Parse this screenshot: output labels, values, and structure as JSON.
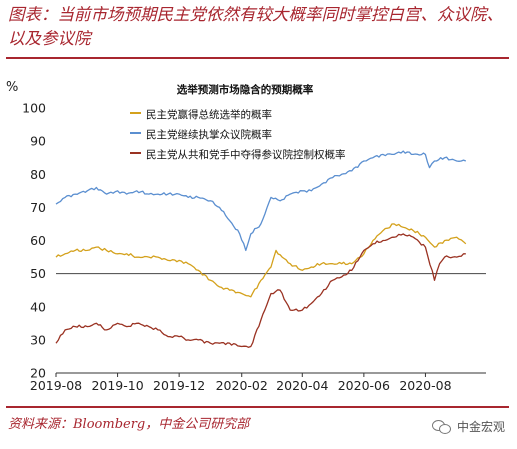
{
  "figure": {
    "title": "图表：当前市场预期民主党依然有较大概率同时掌控白宫、众议院、以及参议院",
    "source": "资料来源：Bloomberg，中金公司研究部",
    "watermark_text": "中金宏观",
    "watermark_icon": "wechat-icon",
    "accent_color": "#a8262f"
  },
  "chart_data": {
    "type": "line",
    "title": "选举预测市场隐含的预期概率",
    "y_unit": "%",
    "ylim": [
      20,
      100
    ],
    "yticks": [
      20,
      30,
      40,
      50,
      60,
      70,
      80,
      90,
      100
    ],
    "xlim": [
      "2019-08-01",
      "2020-09-30"
    ],
    "xticks": [
      "2019-08",
      "2019-10",
      "2019-12",
      "2020-02",
      "2020-04",
      "2020-06",
      "2020-08"
    ],
    "grid": false,
    "reference_line": 50,
    "legend_position": "top-center",
    "series": [
      {
        "name": "民主党赢得总统选举的概率",
        "color": "#d4a11c",
        "points": [
          [
            "2019-08-01",
            55
          ],
          [
            "2019-08-10",
            56
          ],
          [
            "2019-08-20",
            57
          ],
          [
            "2019-09-01",
            57
          ],
          [
            "2019-09-10",
            58
          ],
          [
            "2019-09-20",
            57
          ],
          [
            "2019-10-01",
            56
          ],
          [
            "2019-10-10",
            56
          ],
          [
            "2019-10-20",
            55
          ],
          [
            "2019-11-01",
            55
          ],
          [
            "2019-11-10",
            55
          ],
          [
            "2019-11-20",
            54
          ],
          [
            "2019-12-01",
            54
          ],
          [
            "2019-12-10",
            53
          ],
          [
            "2019-12-20",
            51
          ],
          [
            "2020-01-01",
            48
          ],
          [
            "2020-01-10",
            46
          ],
          [
            "2020-01-20",
            45
          ],
          [
            "2020-02-01",
            44
          ],
          [
            "2020-02-10",
            43
          ],
          [
            "2020-02-20",
            48
          ],
          [
            "2020-03-01",
            52
          ],
          [
            "2020-03-06",
            57
          ],
          [
            "2020-03-12",
            55
          ],
          [
            "2020-03-20",
            53
          ],
          [
            "2020-04-01",
            51
          ],
          [
            "2020-04-10",
            52
          ],
          [
            "2020-04-20",
            53
          ],
          [
            "2020-05-01",
            53
          ],
          [
            "2020-05-10",
            53
          ],
          [
            "2020-05-20",
            53
          ],
          [
            "2020-06-01",
            56
          ],
          [
            "2020-06-10",
            60
          ],
          [
            "2020-06-20",
            63
          ],
          [
            "2020-07-01",
            65
          ],
          [
            "2020-07-10",
            64
          ],
          [
            "2020-07-20",
            63
          ],
          [
            "2020-08-01",
            61
          ],
          [
            "2020-08-10",
            58
          ],
          [
            "2020-08-20",
            60
          ],
          [
            "2020-09-01",
            61
          ],
          [
            "2020-09-10",
            59
          ]
        ]
      },
      {
        "name": "民主党继续执掌众议院概率",
        "color": "#5b8fd0",
        "points": [
          [
            "2019-08-01",
            71
          ],
          [
            "2019-08-10",
            73
          ],
          [
            "2019-08-20",
            74
          ],
          [
            "2019-09-01",
            75
          ],
          [
            "2019-09-10",
            76
          ],
          [
            "2019-09-20",
            74
          ],
          [
            "2019-10-01",
            75
          ],
          [
            "2019-10-10",
            74
          ],
          [
            "2019-10-20",
            75
          ],
          [
            "2019-11-01",
            74
          ],
          [
            "2019-11-10",
            74
          ],
          [
            "2019-11-20",
            74
          ],
          [
            "2019-12-01",
            74
          ],
          [
            "2019-12-10",
            73
          ],
          [
            "2019-12-20",
            73
          ],
          [
            "2020-01-01",
            72
          ],
          [
            "2020-01-10",
            70
          ],
          [
            "2020-01-20",
            66
          ],
          [
            "2020-01-30",
            62
          ],
          [
            "2020-02-05",
            57
          ],
          [
            "2020-02-10",
            62
          ],
          [
            "2020-02-20",
            65
          ],
          [
            "2020-03-01",
            73
          ],
          [
            "2020-03-10",
            72
          ],
          [
            "2020-03-20",
            74
          ],
          [
            "2020-04-01",
            75
          ],
          [
            "2020-04-10",
            75
          ],
          [
            "2020-04-20",
            77
          ],
          [
            "2020-05-01",
            79
          ],
          [
            "2020-05-10",
            80
          ],
          [
            "2020-05-20",
            81
          ],
          [
            "2020-06-01",
            84
          ],
          [
            "2020-06-10",
            85
          ],
          [
            "2020-06-20",
            86
          ],
          [
            "2020-07-01",
            86
          ],
          [
            "2020-07-10",
            87
          ],
          [
            "2020-07-20",
            86
          ],
          [
            "2020-08-01",
            86
          ],
          [
            "2020-08-05",
            82
          ],
          [
            "2020-08-10",
            84
          ],
          [
            "2020-08-20",
            85
          ],
          [
            "2020-09-01",
            84
          ],
          [
            "2020-09-10",
            84
          ]
        ]
      },
      {
        "name": "民主党从共和党手中夺得参议院控制权概率",
        "color": "#9a3222",
        "points": [
          [
            "2019-08-01",
            29
          ],
          [
            "2019-08-10",
            33
          ],
          [
            "2019-08-20",
            34
          ],
          [
            "2019-09-01",
            34
          ],
          [
            "2019-09-10",
            35
          ],
          [
            "2019-09-20",
            33
          ],
          [
            "2019-10-01",
            35
          ],
          [
            "2019-10-10",
            34
          ],
          [
            "2019-10-20",
            35
          ],
          [
            "2019-11-01",
            34
          ],
          [
            "2019-11-10",
            33
          ],
          [
            "2019-11-20",
            31
          ],
          [
            "2019-12-01",
            31
          ],
          [
            "2019-12-10",
            30
          ],
          [
            "2019-12-20",
            30
          ],
          [
            "2020-01-01",
            29
          ],
          [
            "2020-01-10",
            29
          ],
          [
            "2020-01-20",
            29
          ],
          [
            "2020-02-01",
            28
          ],
          [
            "2020-02-10",
            28
          ],
          [
            "2020-02-20",
            36
          ],
          [
            "2020-03-01",
            44
          ],
          [
            "2020-03-10",
            45
          ],
          [
            "2020-03-20",
            39
          ],
          [
            "2020-04-01",
            39
          ],
          [
            "2020-04-10",
            41
          ],
          [
            "2020-04-20",
            44
          ],
          [
            "2020-05-01",
            48
          ],
          [
            "2020-05-10",
            49
          ],
          [
            "2020-05-20",
            51
          ],
          [
            "2020-06-01",
            57
          ],
          [
            "2020-06-10",
            59
          ],
          [
            "2020-06-20",
            60
          ],
          [
            "2020-07-01",
            61
          ],
          [
            "2020-07-10",
            62
          ],
          [
            "2020-07-20",
            61
          ],
          [
            "2020-08-01",
            58
          ],
          [
            "2020-08-10",
            48
          ],
          [
            "2020-08-15",
            53
          ],
          [
            "2020-08-20",
            55
          ],
          [
            "2020-09-01",
            55
          ],
          [
            "2020-09-10",
            56
          ]
        ]
      }
    ]
  }
}
